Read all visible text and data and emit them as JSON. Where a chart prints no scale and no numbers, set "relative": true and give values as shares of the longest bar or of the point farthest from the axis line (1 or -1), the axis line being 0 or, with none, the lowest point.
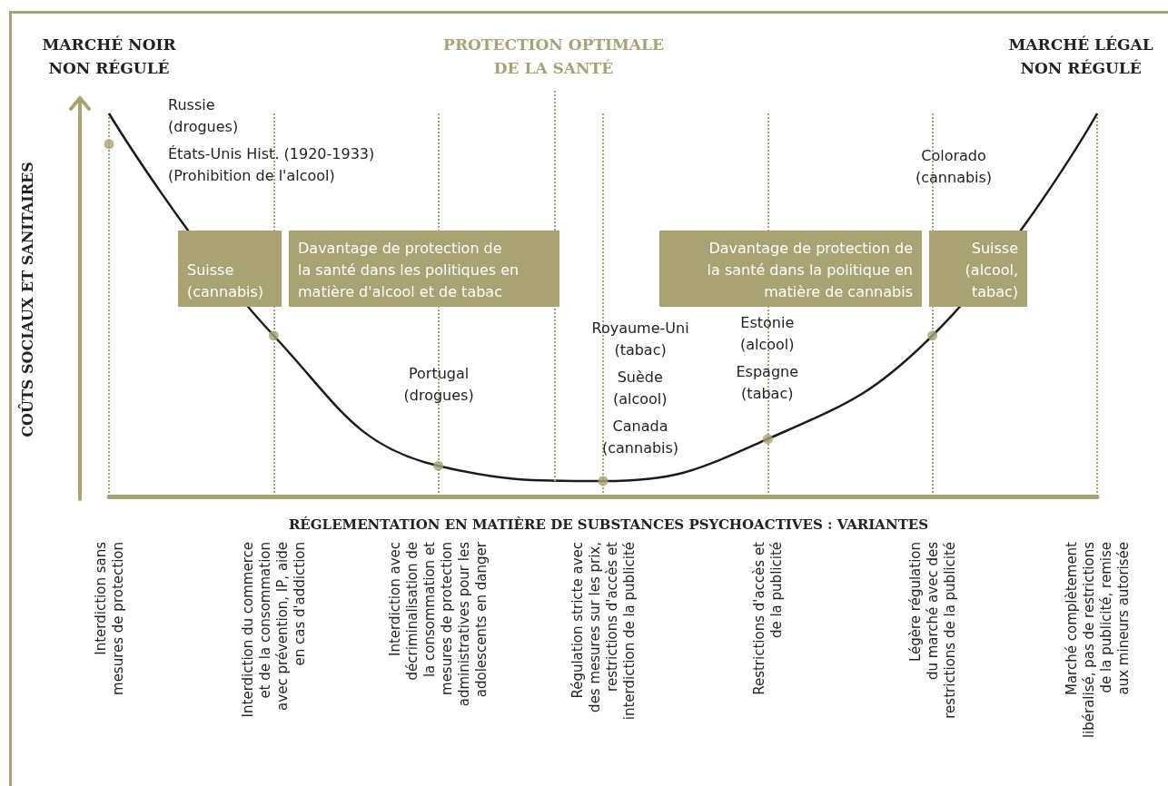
{
  "chart_data": {
    "type": "line",
    "relative": true,
    "xlabel": "RÉGLEMENTATION EN MATIÈRE DE SUBSTANCES PSYCHOACTIVES : VARIANTES",
    "ylabel": "COÛTS SOCIAUX ET SANITAIRES",
    "categories": [
      "Interdiction sans\nmesures de protection",
      "Interdiction du commerce\net de la consommation\navec prévention, IP, aide\nen cas d'addiction",
      "Interdiction avec\ndécriminalisation de\nla consommation et\nmesures de protection\nadministratives pour les\nadolescents en danger",
      "Régulation stricte avec\ndes mesures sur les prix,\nrestrictions d'accès et\ninterdiction de la publicité",
      "Restrictions d'accès et\nde la publicité",
      "Légère régulation\ndu marché avec des\nrestrictions de la publicité",
      "Marché complètement\nlibéralisé, pas de restrictions\nde la publicité, remise\naux mineurs autorisée"
    ],
    "series": [
      {
        "color": "#1e1a1a",
        "marker": "none",
        "line_style": "solid",
        "values": [
          1,
          0.42,
          0.08,
          0.04,
          0.15,
          0.42,
          1
        ]
      },
      {
        "type": "scatter",
        "color": "#a9a273",
        "marker": "circle",
        "x": [
          "Interdiction sans\nmesures de protection",
          "Interdiction du commerce\net de la consommation\navec prévention, IP, aide\nen cas d'addiction",
          "Interdiction avec\ndécriminalisation de\nla consommation et\nmesures de protection\nadministratives pour les\nadolescents en danger",
          "Régulation stricte avec\ndes mesures sur les prix,\nrestrictions d'accès et\ninterdiction de la publicité",
          "Restrictions d'accès et\nde la publicité",
          "Légère régulation\ndu marché avec des\nrestrictions de la publicité"
        ],
        "values": [
          0.92,
          0.42,
          0.08,
          0.04,
          0.15,
          0.42
        ]
      }
    ],
    "annotations": [
      "PROTECTION OPTIMALE\nDE LA SANTÉ",
      "MARCHÉ NOIR\nNON RÉGULÉ",
      "MARCHÉ LÉGAL\nNON RÉGULÉ",
      "Russie\n(drogues)",
      "États-Unis Hist. (1920-1933)\n(Prohibition de l'alcool)",
      "Suisse\n(cannabis)",
      "Davantage de protection de\nla santé dans les politiques en\nmatière d'alcool et de tabac",
      "Portugal\n(drogues)",
      "Royaume-Uni\n(tabac)",
      "Suède\n(alcool)",
      "Canada\n(cannabis)",
      "Estonie\n(alcool)",
      "Espagne\n(tabac)",
      "Davantage de protection de\nla santé dans la politique en\nmatière de cannabis",
      "Suisse\n(alcool,\ntabac)",
      "Colorado\n(cannabis)"
    ],
    "grid": "x"
  }
}
